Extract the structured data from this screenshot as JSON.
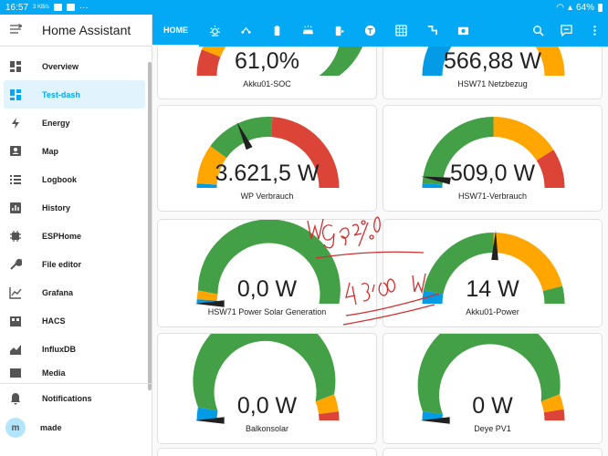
{
  "status": {
    "time": "16:57",
    "small": "3 KB/s",
    "battery": "64%"
  },
  "app": {
    "title": "Home Assistant"
  },
  "nav": [
    {
      "label": "Overview",
      "icon": "dashboard-icon"
    },
    {
      "label": "Test-dash",
      "icon": "dashboard-icon",
      "active": true
    },
    {
      "label": "Energy",
      "icon": "lightning-icon"
    },
    {
      "label": "Map",
      "icon": "map-person-icon"
    },
    {
      "label": "Logbook",
      "icon": "list-icon"
    },
    {
      "label": "History",
      "icon": "chart-icon"
    },
    {
      "label": "ESPHome",
      "icon": "chip-icon"
    },
    {
      "label": "File editor",
      "icon": "wrench-icon"
    },
    {
      "label": "Grafana",
      "icon": "chart-line-icon"
    },
    {
      "label": "HACS",
      "icon": "hacs-icon"
    },
    {
      "label": "InfluxDB",
      "icon": "chart-area-icon"
    },
    {
      "label": "Media",
      "icon": "media-icon"
    }
  ],
  "bottom": {
    "notifications": "Notifications",
    "user": "made",
    "user_initial": "m"
  },
  "tabs": {
    "home": "HOME"
  },
  "cards": [
    {
      "id": "akku-soc",
      "value": "61,0%",
      "name": "Akku01-SOC",
      "level": 0.61
    },
    {
      "id": "netzbezug",
      "value": "566,88 W",
      "name": "HSW71 Netzbezug",
      "level": 0.57
    },
    {
      "id": "wp",
      "value": "3.621,5 W",
      "name": "WP Verbrauch",
      "level": 0.36
    },
    {
      "id": "hsw71-verbrauch",
      "value": "509,0 W",
      "name": "HSW71-Verbrauch",
      "level": 0.05
    },
    {
      "id": "solar",
      "value": "0,0 W",
      "name": "HSW71 Power Solar Generation",
      "level": 0.0
    },
    {
      "id": "akku-power",
      "value": "14 W",
      "name": "Akku01-Power",
      "level": 0.51
    },
    {
      "id": "balkon",
      "value": "0,0 W",
      "name": "Balkonsolar",
      "level": 0.0
    },
    {
      "id": "deye",
      "value": "0 W",
      "name": "Deye PV1",
      "level": 0.0
    }
  ],
  "annotations": {
    "line1": "WG 92%",
    "line2": "43,80 W"
  },
  "colors": {
    "accent": "#03a9f4",
    "green": "#43a047",
    "yellow": "#ffa600",
    "red": "#db4437",
    "blue": "#039be5"
  }
}
